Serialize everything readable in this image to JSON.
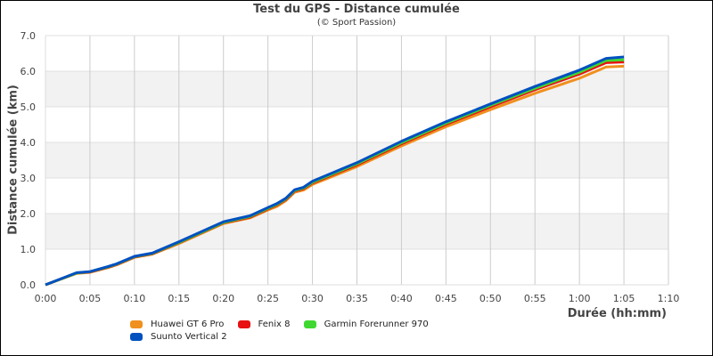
{
  "chart_data": {
    "type": "line",
    "title": "Test du GPS - Distance cumulée",
    "subtitle": "(© Sport Passion)",
    "xlabel": "Durée (hh:mm)",
    "ylabel": "Distance cumulée (km)",
    "xlim": [
      0,
      70
    ],
    "ylim": [
      0,
      7
    ],
    "x_ticks": [
      "0:00",
      "0:05",
      "0:10",
      "0:15",
      "0:20",
      "0:25",
      "0:30",
      "0:35",
      "0:40",
      "0:45",
      "0:50",
      "0:55",
      "1:00",
      "1:05",
      "1:10"
    ],
    "y_ticks": [
      "0.0",
      "1.0",
      "2.0",
      "3.0",
      "4.0",
      "5.0",
      "6.0",
      "7.0"
    ],
    "grid": true,
    "alternating_bands": true,
    "legend_position": "bottom-left",
    "x_minutes": [
      0,
      3.5,
      5,
      7,
      8,
      10,
      12,
      15,
      20,
      23,
      25,
      26,
      27,
      28,
      29,
      30,
      35,
      40,
      45,
      50,
      55,
      60,
      63,
      65
    ],
    "series": [
      {
        "name": "Huawei GT 6 Pro",
        "color": "#F0901E",
        "values": [
          0,
          0.32,
          0.35,
          0.48,
          0.56,
          0.77,
          0.86,
          1.16,
          1.72,
          1.88,
          2.1,
          2.2,
          2.36,
          2.6,
          2.66,
          2.82,
          3.32,
          3.9,
          4.44,
          4.92,
          5.38,
          5.8,
          6.12,
          6.14
        ]
      },
      {
        "name": "Fenix 8",
        "color": "#E81010",
        "values": [
          0,
          0.33,
          0.36,
          0.49,
          0.57,
          0.78,
          0.87,
          1.18,
          1.74,
          1.9,
          2.13,
          2.24,
          2.39,
          2.63,
          2.7,
          2.86,
          3.37,
          3.96,
          4.51,
          5.0,
          5.48,
          5.92,
          6.24,
          6.26
        ]
      },
      {
        "name": "Garmin Forerunner 970",
        "color": "#40D830",
        "values": [
          0,
          0.33,
          0.37,
          0.5,
          0.58,
          0.79,
          0.88,
          1.19,
          1.75,
          1.92,
          2.15,
          2.26,
          2.41,
          2.65,
          2.72,
          2.88,
          3.4,
          3.99,
          4.54,
          5.04,
          5.52,
          5.97,
          6.3,
          6.32
        ]
      },
      {
        "name": "Suunto Vertical 2",
        "color": "#0050C0",
        "values": [
          0,
          0.34,
          0.37,
          0.51,
          0.59,
          0.8,
          0.89,
          1.21,
          1.77,
          1.94,
          2.17,
          2.28,
          2.43,
          2.67,
          2.74,
          2.91,
          3.43,
          4.03,
          4.58,
          5.08,
          5.57,
          6.03,
          6.36,
          6.4
        ]
      }
    ]
  },
  "header": {
    "title": "Test du GPS - Distance cumulée",
    "subtitle": "(© Sport Passion)"
  },
  "axes": {
    "xlabel": "Durée (hh:mm)",
    "ylabel": "Distance cumulée (km)"
  },
  "legend": [
    {
      "label": "Huawei GT 6 Pro",
      "color": "#F0901E"
    },
    {
      "label": "Fenix 8",
      "color": "#E81010"
    },
    {
      "label": "Garmin Forerunner 970",
      "color": "#40D830"
    },
    {
      "label": "Suunto Vertical 2",
      "color": "#0050C0"
    }
  ]
}
